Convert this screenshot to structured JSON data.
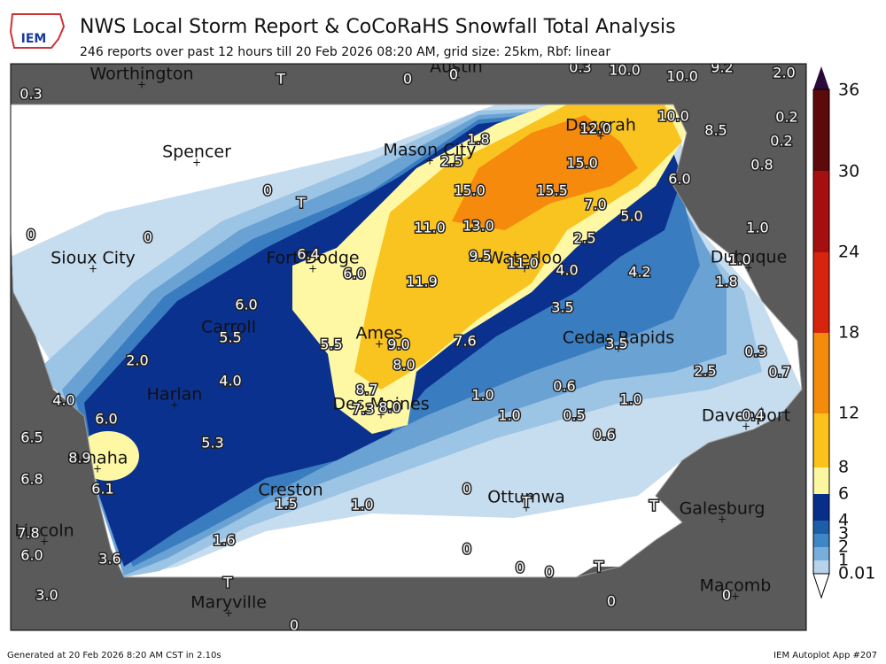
{
  "header": {
    "logo": "IEM",
    "title": "NWS Local Storm Report & CoCoRaHS Snowfall Total Analysis",
    "subtitle": "246 reports over past 12 hours till 20 Feb 2026 08:20 AM, grid size: 25km, Rbf: linear"
  },
  "cities": [
    "Austin",
    "Worthington",
    "Spencer",
    "Mason City",
    "Decorah",
    "Sioux City",
    "Fort Dodge",
    "Waterloo",
    "Dubuque",
    "Carroll",
    "Ames",
    "Cedar Rapids",
    "Harlan",
    "Des Moines",
    "Davenport",
    "Omaha",
    "Lincoln",
    "Creston",
    "Ottumwa",
    "Galesburg",
    "Maryville",
    "Macomb"
  ],
  "reports": [
    "0.3",
    "T",
    "0",
    "0",
    "0.3",
    "10.0",
    "10.0",
    "9.2",
    "2.0",
    "1.8",
    "2.5",
    "12.0",
    "15.0",
    "10.0",
    "8.5",
    "0.2",
    "0.2",
    "0.8",
    "6.0",
    "0",
    "T",
    "15.0",
    "15.5",
    "7.0",
    "5.0",
    "13.0",
    "11.0",
    "0",
    "0",
    "2.5",
    "1.0",
    "6.4",
    "6.0",
    "9.5",
    "11.0",
    "4.0",
    "4.2",
    "1.0",
    "1.8",
    "11.9",
    "6.0",
    "3.5",
    "5.5",
    "5.5",
    "9.0",
    "7.6",
    "3.5",
    "8.0",
    "2.0",
    "0.3",
    "0.7",
    "2.5",
    "4.0",
    "8.7",
    "7.3",
    "8.0",
    "1.0",
    "0.6",
    "1.0",
    "4.0",
    "6.0",
    "1.0",
    "0.5",
    "0.4",
    "0.6",
    "6.5",
    "5.3",
    "8.9",
    "6.8",
    "6.1",
    "0",
    "1.5",
    "1.0",
    "T",
    "T",
    "7.8",
    "6.0",
    "1.6",
    "0",
    "3.6",
    "0",
    "0",
    "T",
    "T",
    "3.0",
    "0",
    "0",
    "0"
  ],
  "colorbar": {
    "labels": [
      "36",
      "30",
      "24",
      "18",
      "12",
      "8",
      "6",
      "4",
      "3",
      "2",
      "1",
      "0.01"
    ]
  },
  "footer": {
    "left": "Generated at 20 Feb 2026 8:20 AM CST in 2.10s",
    "right": "IEM Autoplot App #207"
  }
}
